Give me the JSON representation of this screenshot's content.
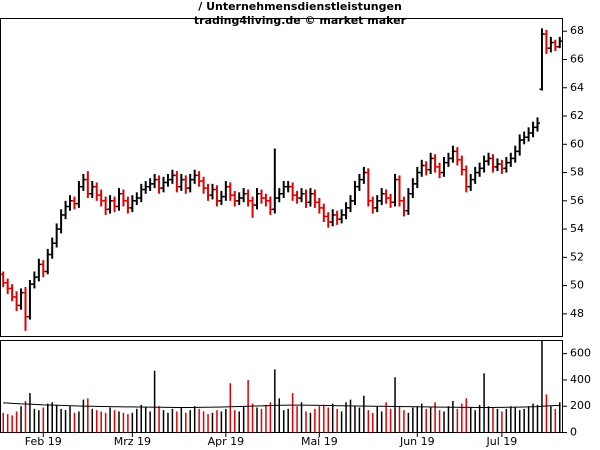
{
  "chart_data": [
    {
      "type": "ohlc",
      "title": "/ Unternehmensdienstleistungen",
      "subtitle": "trading4living.de © market maker",
      "up_color": "#000000",
      "down_color": "#e00000",
      "open": [
        50.8,
        50.2,
        49.8,
        49.2,
        48.6,
        49.5,
        47.8,
        50.1,
        50.6,
        51.5,
        51.0,
        52.2,
        53.0,
        54.0,
        55.0,
        55.6,
        56.0,
        55.8,
        57.0,
        57.5,
        56.5,
        57.0,
        56.4,
        56.0,
        55.4,
        56.0,
        55.6,
        56.5,
        56.0,
        55.5,
        56.0,
        56.2,
        56.8,
        57.0,
        57.2,
        57.5,
        56.9,
        57.3,
        57.5,
        57.8,
        57.0,
        57.5,
        56.9,
        57.5,
        57.8,
        57.4,
        56.9,
        56.4,
        56.8,
        56.0,
        56.3,
        57.0,
        56.4,
        56.0,
        56.2,
        56.5,
        56.0,
        55.7,
        56.5,
        56.2,
        56.0,
        55.4,
        56.2,
        56.5,
        57.0,
        57.0,
        56.4,
        56.2,
        56.5,
        55.9,
        56.5,
        55.9,
        55.5,
        54.9,
        54.5,
        55.0,
        54.7,
        55.0,
        55.5,
        56.0,
        57.0,
        57.5,
        58.0,
        56.0,
        55.5,
        56.0,
        56.5,
        56.2,
        55.9,
        57.5,
        56.0,
        55.3,
        56.5,
        57.2,
        58.0,
        58.5,
        58.2,
        59.0,
        58.4,
        58.0,
        58.7,
        59.0,
        59.5,
        58.9,
        58.2,
        57.0,
        57.5,
        58.0,
        58.3,
        58.8,
        59.0,
        58.4,
        58.6,
        58.3,
        58.7,
        59.0,
        59.5,
        60.3,
        60.5,
        60.8,
        61.2,
        63.9,
        67.8,
        66.8,
        67.2,
        66.9
      ],
      "high": [
        51.0,
        50.5,
        50.1,
        49.6,
        49.8,
        49.9,
        50.4,
        51.0,
        51.9,
        51.8,
        52.6,
        53.4,
        54.4,
        55.4,
        56.0,
        56.4,
        56.3,
        57.4,
        57.9,
        58.1,
        57.4,
        57.3,
        56.8,
        56.3,
        56.4,
        56.3,
        56.9,
        56.8,
        56.3,
        56.4,
        56.6,
        57.2,
        57.4,
        57.6,
        57.9,
        57.8,
        57.7,
        57.9,
        58.2,
        58.1,
        57.9,
        57.8,
        57.9,
        58.2,
        58.1,
        57.7,
        57.2,
        57.2,
        57.1,
        56.7,
        57.4,
        57.3,
        56.7,
        56.6,
        56.9,
        56.8,
        56.3,
        56.9,
        56.8,
        56.5,
        56.3,
        59.7,
        56.9,
        57.4,
        57.4,
        57.3,
        56.7,
        56.9,
        56.8,
        56.9,
        56.8,
        56.2,
        55.8,
        55.2,
        55.4,
        55.3,
        55.4,
        55.9,
        56.4,
        57.4,
        57.9,
        58.4,
        58.3,
        56.3,
        56.4,
        56.9,
        56.8,
        56.5,
        57.9,
        57.8,
        56.3,
        56.9,
        57.6,
        58.4,
        58.9,
        58.8,
        59.4,
        59.3,
        58.7,
        59.1,
        59.4,
        59.9,
        59.8,
        59.2,
        58.5,
        57.9,
        58.4,
        58.7,
        59.2,
        59.4,
        59.3,
        59.0,
        58.9,
        59.1,
        59.4,
        59.9,
        60.7,
        60.9,
        61.2,
        61.6,
        61.9,
        68.2,
        68.1,
        67.6,
        67.4,
        67.6
      ],
      "low": [
        49.9,
        49.4,
        48.9,
        48.2,
        48.3,
        46.8,
        47.6,
        49.8,
        50.3,
        50.6,
        50.8,
        51.9,
        52.7,
        53.7,
        54.7,
        55.3,
        55.4,
        55.5,
        56.7,
        56.2,
        56.2,
        56.0,
        55.6,
        55.0,
        55.1,
        55.2,
        55.3,
        55.6,
        55.1,
        55.2,
        55.7,
        55.9,
        56.5,
        56.7,
        56.9,
        56.5,
        56.6,
        57.0,
        57.2,
        56.6,
        56.7,
        56.5,
        56.6,
        57.2,
        57.0,
        56.5,
        56.0,
        56.1,
        55.6,
        55.7,
        56.0,
        56.0,
        55.6,
        55.7,
        55.9,
        55.6,
        54.8,
        55.4,
        55.8,
        55.6,
        55.0,
        55.1,
        55.9,
        56.2,
        56.6,
        56.0,
        55.8,
        55.9,
        55.5,
        55.6,
        55.5,
        55.1,
        54.5,
        54.1,
        54.2,
        54.3,
        54.4,
        54.7,
        55.2,
        55.7,
        56.7,
        57.2,
        55.6,
        55.1,
        55.2,
        55.7,
        55.8,
        55.5,
        55.6,
        55.6,
        54.9,
        55.0,
        56.2,
        56.9,
        57.7,
        57.8,
        57.9,
        58.0,
        57.6,
        57.7,
        58.4,
        58.7,
        58.5,
        57.8,
        56.6,
        56.7,
        57.2,
        57.7,
        58.0,
        58.5,
        58.0,
        58.1,
        57.9,
        58.0,
        58.4,
        58.7,
        59.2,
        60.0,
        60.2,
        60.5,
        60.9,
        63.8,
        66.4,
        66.5,
        66.6,
        66.8
      ],
      "close": [
        50.2,
        49.8,
        49.2,
        48.6,
        49.5,
        47.8,
        50.1,
        50.6,
        51.5,
        51.0,
        52.2,
        53.0,
        54.0,
        55.0,
        55.6,
        56.0,
        55.8,
        57.0,
        57.5,
        56.5,
        57.0,
        56.4,
        56.0,
        55.4,
        56.0,
        55.6,
        56.5,
        56.0,
        55.5,
        56.0,
        56.2,
        56.8,
        57.0,
        57.2,
        57.5,
        56.9,
        57.3,
        57.5,
        57.8,
        57.0,
        57.5,
        56.9,
        57.5,
        57.8,
        57.4,
        56.9,
        56.4,
        56.8,
        56.0,
        56.3,
        57.0,
        56.4,
        56.0,
        56.2,
        56.5,
        56.0,
        55.7,
        56.5,
        56.2,
        56.0,
        55.4,
        56.2,
        56.5,
        57.0,
        57.0,
        56.4,
        56.2,
        56.5,
        55.9,
        56.5,
        55.9,
        55.5,
        54.9,
        54.5,
        55.0,
        54.7,
        55.0,
        55.5,
        56.0,
        57.0,
        57.5,
        58.0,
        56.0,
        55.5,
        56.0,
        56.5,
        56.2,
        55.9,
        57.5,
        56.0,
        55.3,
        56.5,
        57.2,
        58.0,
        58.5,
        58.2,
        59.0,
        58.4,
        58.0,
        58.7,
        59.0,
        59.5,
        58.9,
        58.2,
        57.0,
        57.5,
        58.0,
        58.3,
        58.8,
        59.0,
        58.4,
        58.6,
        58.3,
        58.7,
        59.0,
        59.5,
        60.3,
        60.5,
        60.8,
        61.2,
        61.5,
        67.8,
        66.8,
        67.2,
        66.9,
        67.3
      ],
      "xlim": [
        -0.5,
        125.5
      ],
      "xticks": [
        {
          "value": 9,
          "label": "Feb 19"
        },
        {
          "value": 29,
          "label": "Mrz 19"
        },
        {
          "value": 50,
          "label": "Apr 19"
        },
        {
          "value": 71,
          "label": "Mai 19"
        },
        {
          "value": 93,
          "label": "Jun 19"
        },
        {
          "value": 112,
          "label": "Jul 19"
        }
      ],
      "ylim": [
        46.4,
        68.9
      ],
      "yticks": [
        48,
        50,
        52,
        54,
        56,
        58,
        60,
        62,
        64,
        66,
        68
      ]
    },
    {
      "type": "bar",
      "values": [
        150,
        140,
        130,
        160,
        200,
        240,
        300,
        180,
        170,
        190,
        220,
        230,
        210,
        180,
        170,
        200,
        150,
        160,
        250,
        260,
        180,
        170,
        160,
        150,
        190,
        170,
        160,
        150,
        140,
        150,
        180,
        210,
        190,
        160,
        470,
        200,
        170,
        150,
        180,
        160,
        190,
        150,
        170,
        200,
        180,
        160,
        140,
        150,
        170,
        160,
        180,
        375,
        170,
        160,
        200,
        400,
        220,
        190,
        180,
        210,
        230,
        480,
        260,
        170,
        180,
        300,
        200,
        230,
        160,
        150,
        180,
        200,
        210,
        190,
        220,
        180,
        160,
        230,
        250,
        200,
        190,
        280,
        170,
        150,
        200,
        160,
        230,
        180,
        420,
        200,
        170,
        150,
        190,
        200,
        220,
        180,
        190,
        230,
        170,
        160,
        200,
        240,
        180,
        220,
        260,
        190,
        170,
        210,
        450,
        200,
        190,
        180,
        160,
        180,
        200,
        190,
        170,
        180,
        200,
        220,
        210,
        700,
        290,
        200,
        180,
        230
      ],
      "average": {
        "color": "#000000",
        "values": [
          225,
          224,
          222,
          220,
          218,
          217,
          216,
          214,
          212,
          210,
          209,
          208,
          207,
          206,
          205,
          204,
          203,
          202,
          201,
          200,
          200,
          199,
          198,
          198,
          197,
          196,
          196,
          195,
          195,
          195,
          194,
          194,
          193,
          193,
          192,
          192,
          192,
          191,
          191,
          190,
          190,
          190,
          190,
          191,
          191,
          192,
          192,
          193,
          193,
          194,
          195,
          196,
          197,
          198,
          199,
          200,
          201,
          202,
          203,
          204,
          205,
          206,
          207,
          207,
          208,
          208,
          208,
          208,
          208,
          207,
          207,
          206,
          206,
          205,
          205,
          204,
          204,
          203,
          203,
          202,
          202,
          201,
          201,
          200,
          200,
          200,
          199,
          199,
          198,
          198,
          197,
          197,
          196,
          196,
          195,
          195,
          194,
          194,
          193,
          193,
          192,
          192,
          192,
          191,
          191,
          191,
          190,
          190,
          190,
          190,
          190,
          191,
          191,
          192,
          192,
          193,
          193,
          194,
          195,
          196,
          197,
          200,
          202,
          204,
          205,
          206
        ]
      },
      "ylim": [
        0,
        700
      ],
      "yticks": [
        0,
        200,
        400,
        600
      ]
    }
  ]
}
